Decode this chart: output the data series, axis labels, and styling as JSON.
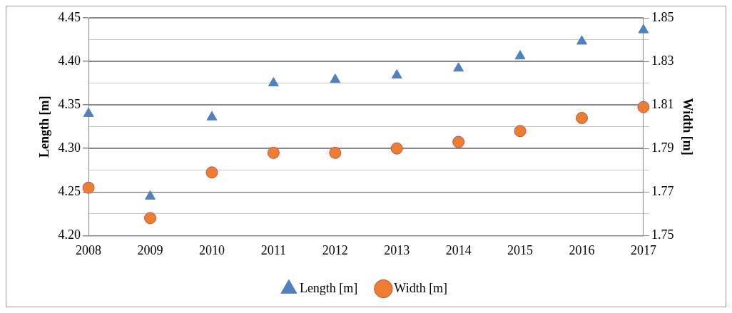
{
  "chart_data": {
    "type": "scatter",
    "xlabel": null,
    "ylabel": "Length [m]",
    "y2label": "Width [m]",
    "categories": [
      "2008",
      "2009",
      "2010",
      "2011",
      "2012",
      "2013",
      "2014",
      "2015",
      "2016",
      "2017"
    ],
    "series": [
      {
        "name": "Length [m]",
        "color": "#4f81bd",
        "marker": "triangle",
        "values": [
          4.34,
          4.245,
          4.336,
          4.375,
          4.379,
          4.384,
          4.392,
          4.406,
          4.423,
          4.436
        ]
      },
      {
        "name": "Width [m]",
        "color": "#ed7d31",
        "marker": "circle",
        "axis": "y2",
        "values": [
          1.772,
          1.758,
          1.779,
          1.788,
          1.788,
          1.79,
          1.793,
          1.798,
          1.804,
          1.809
        ]
      }
    ],
    "ylim": [
      4.2,
      4.45
    ],
    "yticks": [
      {
        "value": 4.2,
        "label": "4.20"
      },
      {
        "value": 4.25,
        "label": "4.25"
      },
      {
        "value": 4.3,
        "label": "4.30"
      },
      {
        "value": 4.35,
        "label": "4.35"
      },
      {
        "value": 4.4,
        "label": "4.40"
      },
      {
        "value": 4.45,
        "label": "4.45"
      }
    ],
    "y2lim": [
      1.75,
      1.85
    ],
    "y2ticks": [
      1.75,
      {
        "value": 1.76,
        "label": null
      },
      1.77,
      {
        "value": 1.78,
        "label": null
      },
      1.79,
      {
        "value": 1.8,
        "label": null
      },
      1.81,
      {
        "value": 1.82,
        "label": null
      },
      1.83,
      {
        "value": 1.84,
        "label": null
      },
      1.85
    ],
    "grid": "y",
    "legend": "bottom"
  }
}
